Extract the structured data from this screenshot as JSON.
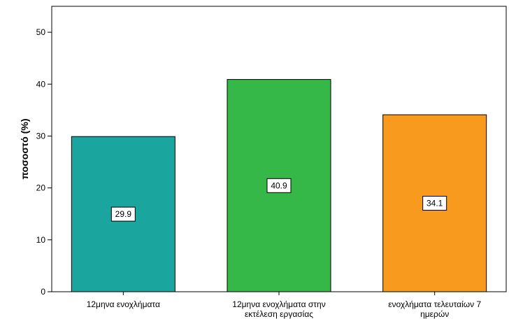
{
  "chart_data": {
    "type": "bar",
    "title": "",
    "xlabel": "",
    "ylabel": "ποσοστό (%)",
    "ylim": [
      0,
      55
    ],
    "yticks": [
      0,
      10,
      20,
      30,
      40,
      50
    ],
    "grid": false,
    "categories": [
      [
        "12μηνα ενοχλήματα"
      ],
      [
        "12μηνα ενοχλήματα στην",
        "εκτέλεση εργασίας"
      ],
      [
        "ενοχλήματα τελευταίων 7",
        "ημερών"
      ]
    ],
    "values": [
      29.9,
      40.9,
      34.1
    ],
    "data_labels": [
      "29.9",
      "40.9",
      "34.1"
    ],
    "colors": [
      "#1aa69f",
      "#35b848",
      "#f79a1e"
    ]
  }
}
